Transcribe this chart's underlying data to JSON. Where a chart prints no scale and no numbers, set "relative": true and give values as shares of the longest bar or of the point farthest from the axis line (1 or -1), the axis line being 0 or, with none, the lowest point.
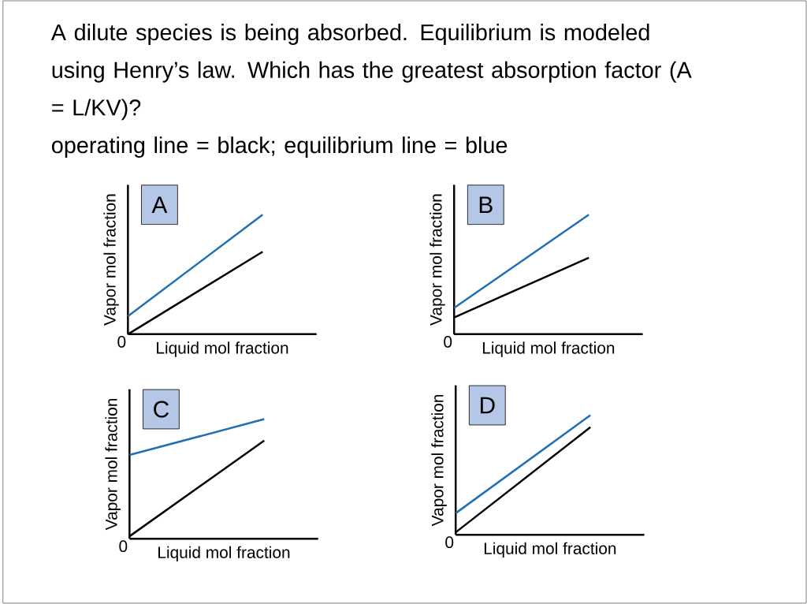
{
  "chart_data": [
    {
      "type": "other",
      "title": "A dilute species is being absorbed. Equilibrium is modeled using Henry’s law. Which has the greatest absorption factor (A = L/KV)?",
      "subtitle": "operating line = black; equilibrium line = blue"
    },
    {
      "type": "line",
      "title": "A",
      "xlabel": "Liquid mol fraction",
      "ylabel": "Vapor mol fraction",
      "annotations": [
        "0"
      ],
      "relative": true,
      "categories": [
        null,
        null
      ],
      "series": [
        {
          "color": "#1f6fb4",
          "values": [
            0.15,
            1
          ]
        },
        {
          "color": "#000000",
          "values": [
            0,
            0.69
          ]
        }
      ]
    },
    {
      "type": "line",
      "title": "B",
      "xlabel": "Liquid mol fraction",
      "ylabel": "Vapor mol fraction",
      "annotations": [
        "0"
      ],
      "relative": true,
      "categories": [
        null,
        null
      ],
      "series": [
        {
          "color": "#1f6fb4",
          "values": [
            0.22,
            1
          ]
        },
        {
          "color": "#000000",
          "values": [
            0.14,
            0.64
          ]
        }
      ]
    },
    {
      "type": "line",
      "title": "C",
      "xlabel": "Liquid mol fraction",
      "ylabel": "Vapor mol fraction",
      "annotations": [
        "0"
      ],
      "relative": true,
      "categories": [
        null,
        null
      ],
      "series": [
        {
          "color": "#1f6fb4",
          "values": [
            0.7,
            1
          ]
        },
        {
          "color": "#000000",
          "values": [
            0.02,
            0.82
          ]
        }
      ]
    },
    {
      "type": "line",
      "title": "D",
      "xlabel": "Liquid mol fraction",
      "ylabel": "Vapor mol fraction",
      "annotations": [
        "0"
      ],
      "relative": true,
      "categories": [
        null,
        null
      ],
      "series": [
        {
          "color": "#1f6fb4",
          "values": [
            0.18,
            1
          ]
        },
        {
          "color": "#000000",
          "values": [
            0.02,
            0.9
          ]
        }
      ]
    }
  ]
}
